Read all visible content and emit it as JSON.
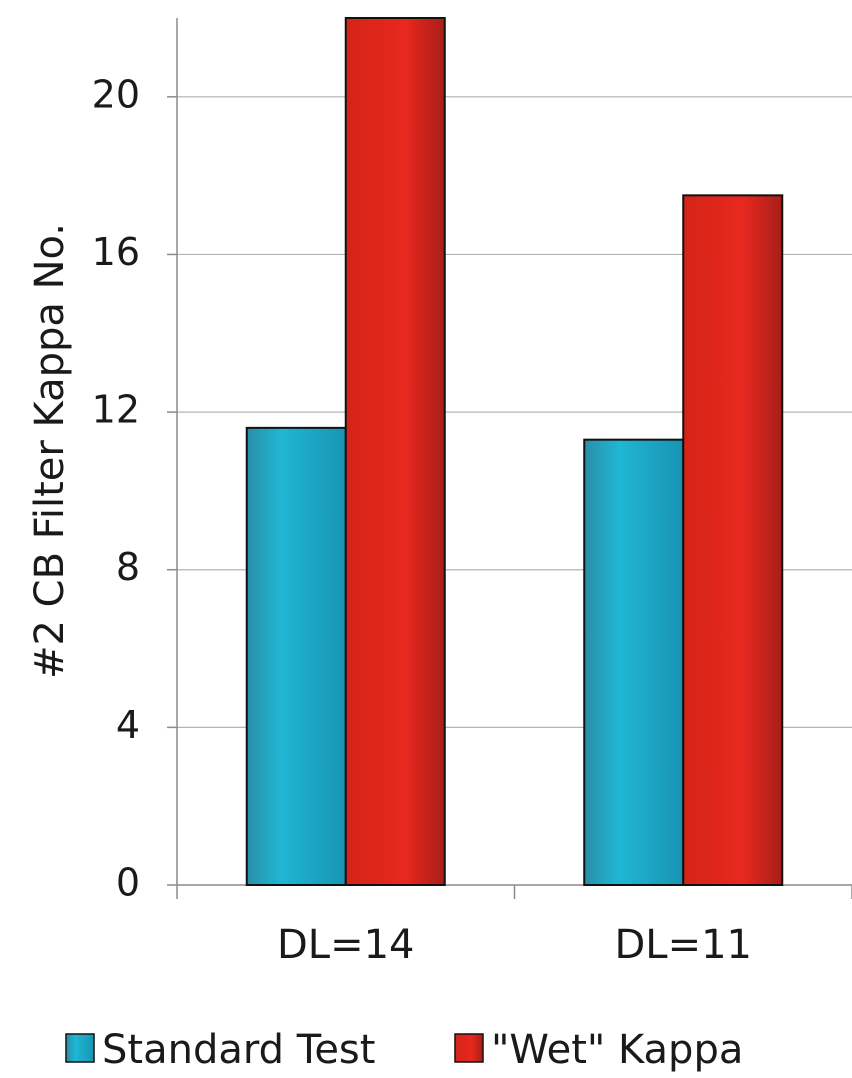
{
  "chart_data": {
    "type": "bar",
    "title": "",
    "ylabel": "#2 CB Filter Kappa No.",
    "xlabel": "",
    "categories": [
      "DL=14",
      "DL=11"
    ],
    "series": [
      {
        "name": "Standard Test",
        "values": [
          11.6,
          11.3
        ],
        "color": "#1ca9c9"
      },
      {
        "name": "\"Wet\" Kappa",
        "values": [
          22.0,
          17.5
        ],
        "color": "#e8261e"
      }
    ],
    "ylim": [
      0,
      22
    ],
    "yticks": [
      0,
      4,
      8,
      12,
      16,
      20
    ],
    "grid": true,
    "legend_position": "bottom"
  }
}
